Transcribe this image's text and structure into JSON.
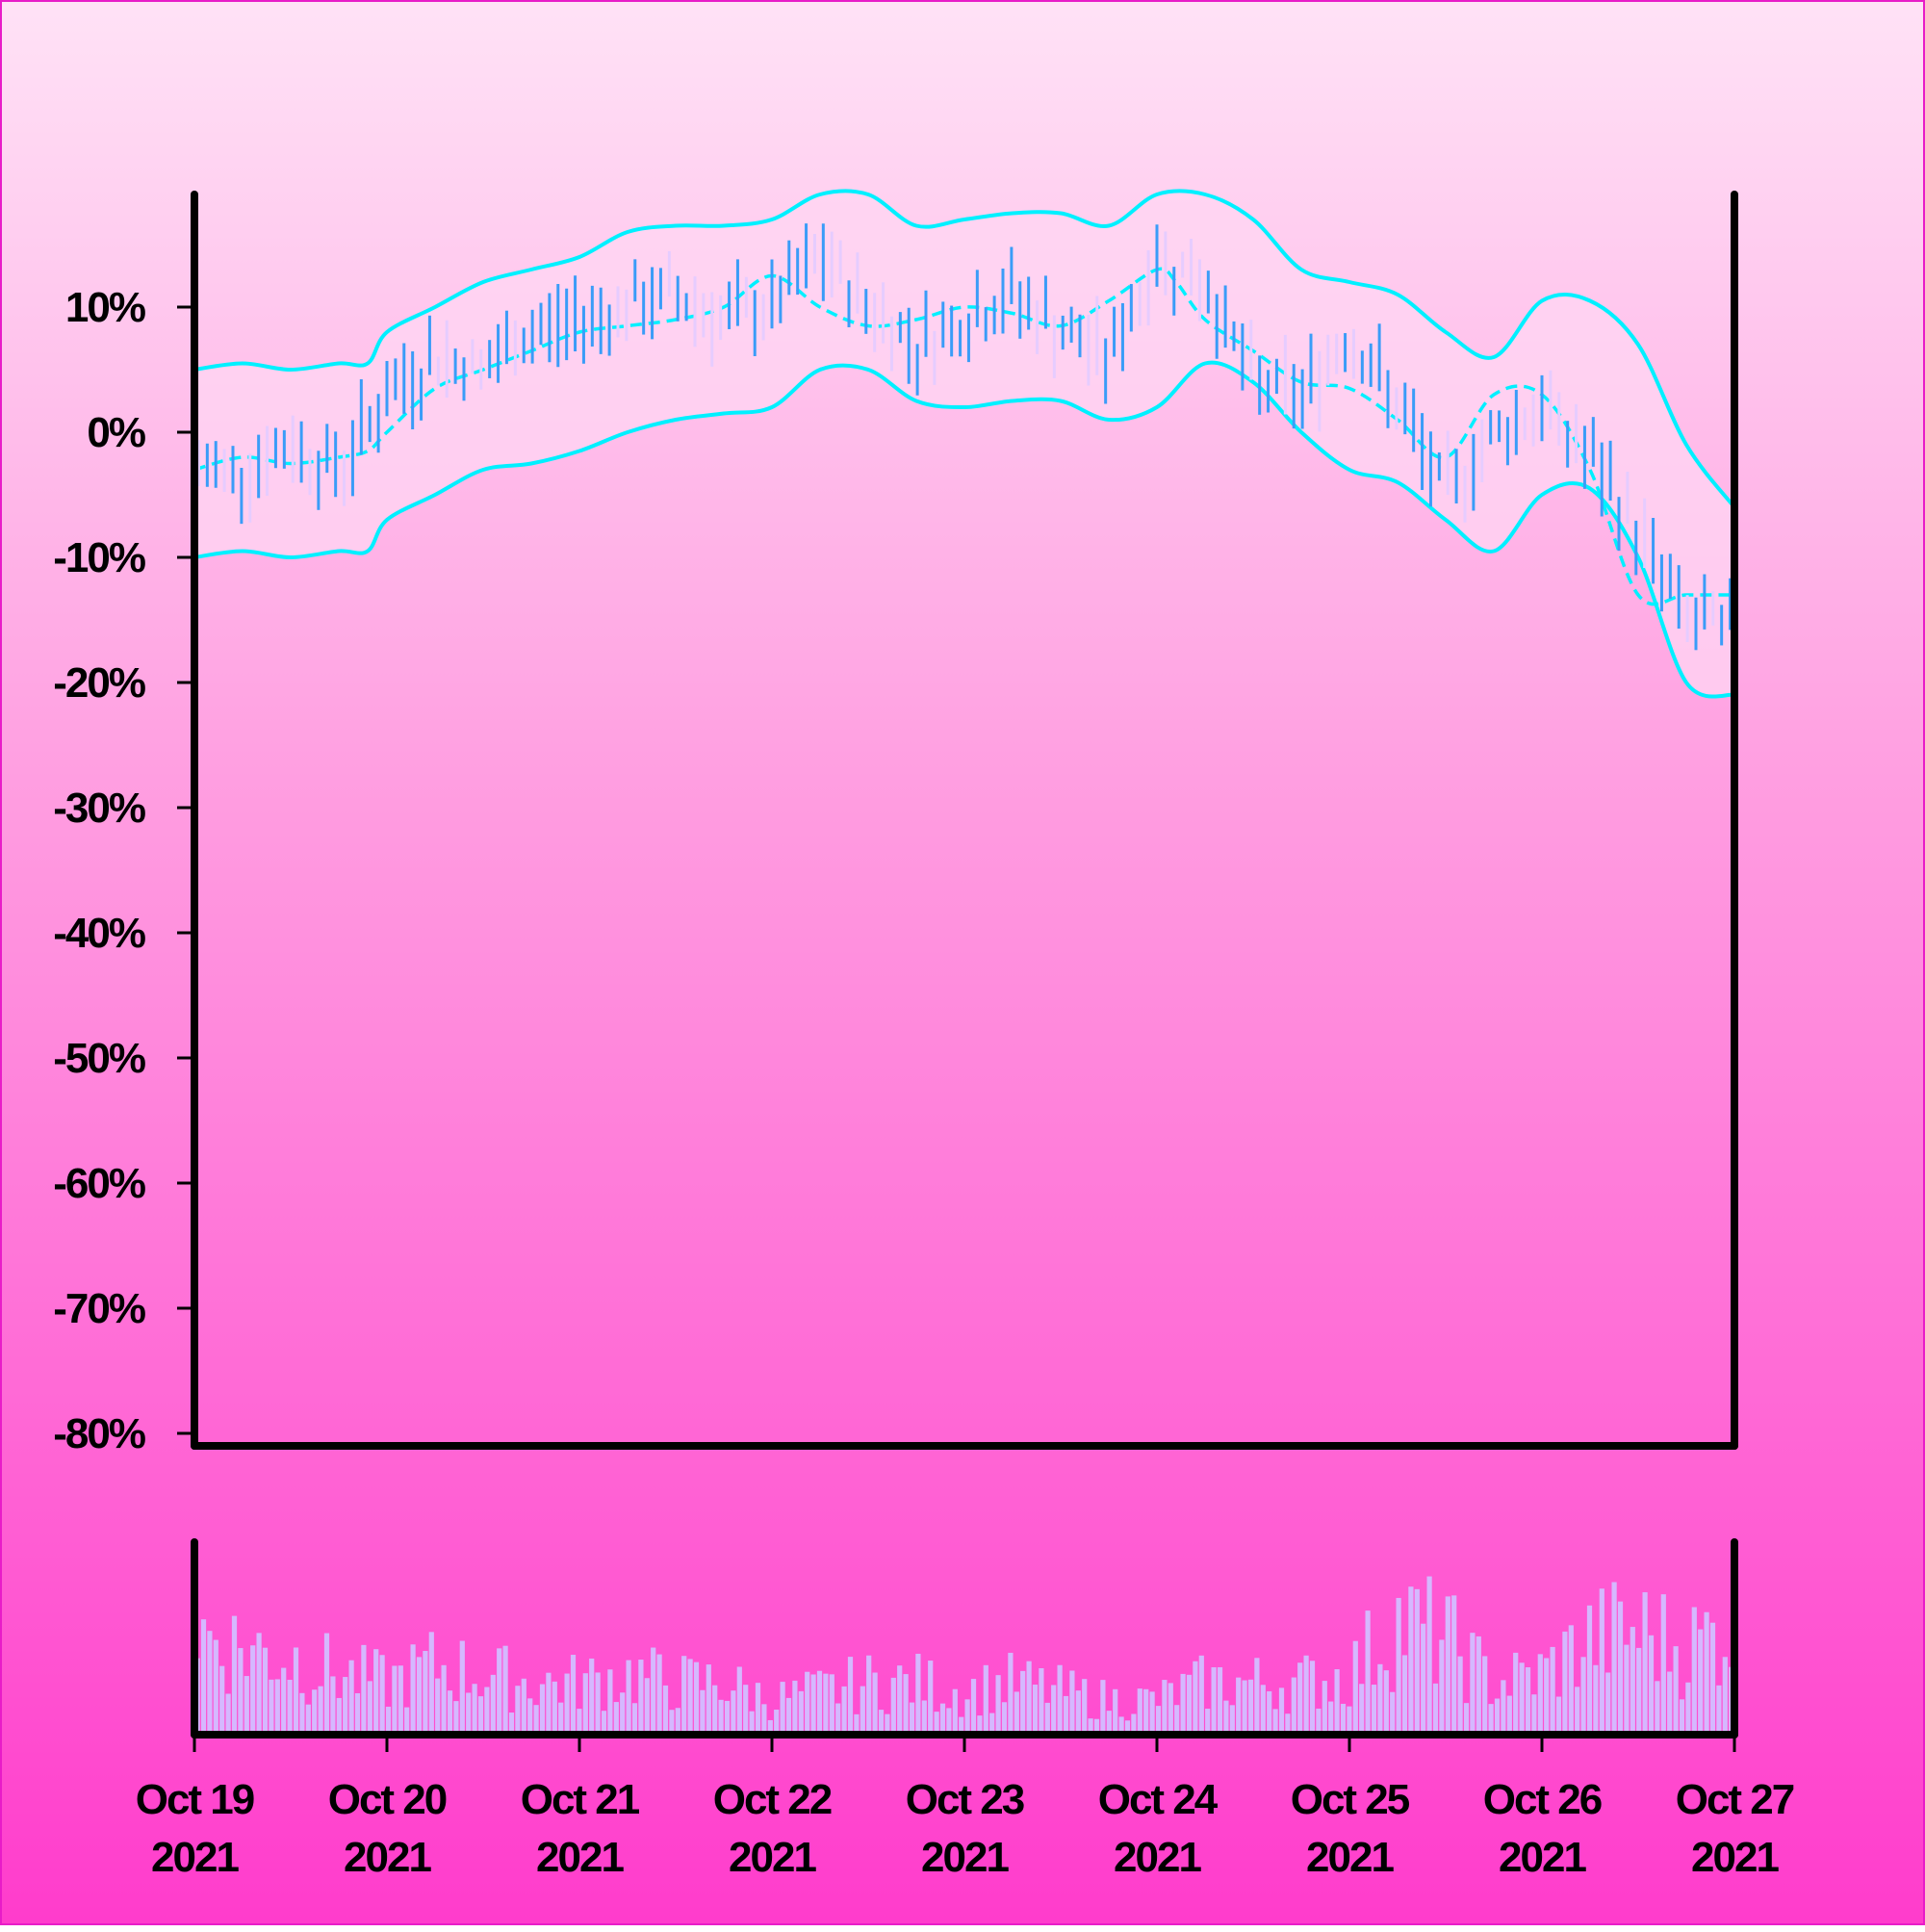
{
  "chart_data": {
    "type": "ohlc",
    "title": "",
    "xlabel": "",
    "ylabel": "",
    "y_tick_labels": [
      "10%",
      "0%",
      "-10%",
      "-20%",
      "-30%",
      "-40%",
      "-50%",
      "-60%",
      "-70%",
      "-80%"
    ],
    "y_ticks": [
      10,
      0,
      -10,
      -20,
      -30,
      -40,
      -50,
      -60,
      -70,
      -80
    ],
    "ylim": [
      -81,
      19
    ],
    "x_ticks": [
      {
        "label": "Oct 19",
        "year": "2021",
        "day": 0
      },
      {
        "label": "Oct 20",
        "year": "2021",
        "day": 1
      },
      {
        "label": "Oct 21",
        "year": "2021",
        "day": 2
      },
      {
        "label": "Oct 22",
        "year": "2021",
        "day": 3
      },
      {
        "label": "Oct 23",
        "year": "2021",
        "day": 4
      },
      {
        "label": "Oct 24",
        "year": "2021",
        "day": 5
      },
      {
        "label": "Oct 25",
        "year": "2021",
        "day": 6
      },
      {
        "label": "Oct 26",
        "year": "2021",
        "day": 7
      },
      {
        "label": "Oct 27",
        "year": "2021",
        "day": 8
      }
    ],
    "xlim_days": [
      0,
      8
    ],
    "grid": false,
    "price_series": {
      "name": "",
      "days": [
        0.0,
        0.25,
        0.5,
        0.75,
        1.0,
        1.25,
        1.5,
        1.75,
        2.0,
        2.25,
        2.5,
        2.75,
        3.0,
        3.25,
        3.5,
        3.75,
        4.0,
        4.25,
        4.5,
        4.75,
        5.0,
        5.25,
        5.5,
        5.75,
        6.0,
        6.25,
        6.5,
        6.75,
        7.0,
        7.25,
        7.5,
        7.75,
        8.0
      ],
      "close_pct": [
        -3,
        -3,
        -1,
        -3,
        3,
        6,
        5,
        8,
        9,
        10,
        11,
        9,
        10,
        14,
        10,
        7,
        9,
        11,
        8,
        6,
        14,
        12,
        4,
        3,
        8,
        2,
        -5,
        0,
        2,
        -2,
        -8,
        -15,
        -16
      ]
    },
    "moving_average": {
      "style": "dashed",
      "days": [
        0.0,
        0.25,
        0.5,
        0.75,
        0.9,
        1.0,
        1.25,
        1.5,
        1.75,
        2.0,
        2.25,
        2.5,
        2.75,
        3.0,
        3.25,
        3.5,
        3.75,
        4.0,
        4.25,
        4.5,
        4.75,
        5.0,
        5.1,
        5.25,
        5.5,
        5.75,
        6.0,
        6.25,
        6.5,
        6.75,
        7.0,
        7.25,
        7.5,
        7.75,
        8.0
      ],
      "values_pct": [
        -3,
        -2,
        -2.5,
        -2,
        -1.5,
        0,
        3.5,
        5,
        6.5,
        8,
        8.5,
        9,
        10,
        12.5,
        10,
        8.5,
        9,
        10,
        9.5,
        8.5,
        10.5,
        13,
        12,
        9,
        6.5,
        4,
        3.5,
        1,
        -2,
        3,
        3,
        -3,
        -13,
        -13,
        -13
      ]
    },
    "upper_band": {
      "days": [
        0.0,
        0.25,
        0.5,
        0.75,
        0.9,
        1.0,
        1.25,
        1.5,
        1.75,
        2.0,
        2.25,
        2.5,
        2.75,
        3.0,
        3.25,
        3.5,
        3.75,
        4.0,
        4.25,
        4.5,
        4.75,
        5.0,
        5.25,
        5.5,
        5.75,
        6.0,
        6.25,
        6.5,
        6.75,
        7.0,
        7.25,
        7.5,
        7.75,
        8.0
      ],
      "values_pct": [
        5,
        5.5,
        5,
        5.5,
        5.5,
        8,
        10,
        12,
        13,
        14,
        16,
        16.5,
        16.5,
        17,
        19,
        19,
        16.5,
        17,
        17.5,
        17.5,
        16.5,
        19,
        19,
        17,
        13,
        12,
        11,
        8,
        6,
        10.5,
        10.5,
        7,
        -1,
        -6
      ]
    },
    "lower_band": {
      "days": [
        0.0,
        0.25,
        0.5,
        0.75,
        0.9,
        1.0,
        1.25,
        1.5,
        1.75,
        2.0,
        2.25,
        2.5,
        2.75,
        3.0,
        3.25,
        3.5,
        3.75,
        4.0,
        4.25,
        4.5,
        4.75,
        5.0,
        5.25,
        5.5,
        5.75,
        6.0,
        6.25,
        6.5,
        6.75,
        7.0,
        7.25,
        7.5,
        7.75,
        8.0
      ],
      "values_pct": [
        -10,
        -9.5,
        -10,
        -9.5,
        -9.5,
        -7,
        -5,
        -3,
        -2.5,
        -1.5,
        0,
        1,
        1.5,
        2,
        5,
        5,
        2.5,
        2,
        2.5,
        2.5,
        1,
        2,
        5.5,
        4,
        0,
        -3,
        -4,
        -7,
        -9.5,
        -5,
        -4.5,
        -10,
        -20,
        -21
      ]
    },
    "volume": {
      "days": [
        0.0,
        0.25,
        0.5,
        0.75,
        1.0,
        1.25,
        1.5,
        1.75,
        2.0,
        2.25,
        2.5,
        2.75,
        3.0,
        3.25,
        3.5,
        3.75,
        4.0,
        4.25,
        4.5,
        4.75,
        5.0,
        5.25,
        5.5,
        5.75,
        6.0,
        6.25,
        6.5,
        6.75,
        7.0,
        7.25,
        7.5,
        7.75,
        8.0
      ],
      "relative": [
        0.6,
        0.5,
        0.45,
        0.35,
        0.3,
        0.4,
        0.35,
        0.3,
        0.3,
        0.35,
        0.3,
        0.3,
        0.2,
        0.25,
        0.3,
        0.3,
        0.25,
        0.3,
        0.25,
        0.2,
        0.2,
        0.3,
        0.3,
        0.3,
        0.35,
        0.65,
        0.55,
        0.3,
        0.35,
        0.55,
        0.6,
        0.5,
        0.65
      ]
    },
    "colors": {
      "band": "#00f0ff",
      "band_fill": "#ffd6f3",
      "bar": "#3a9cf8",
      "volume": "#d5b8ff",
      "axes": "#000000"
    }
  }
}
